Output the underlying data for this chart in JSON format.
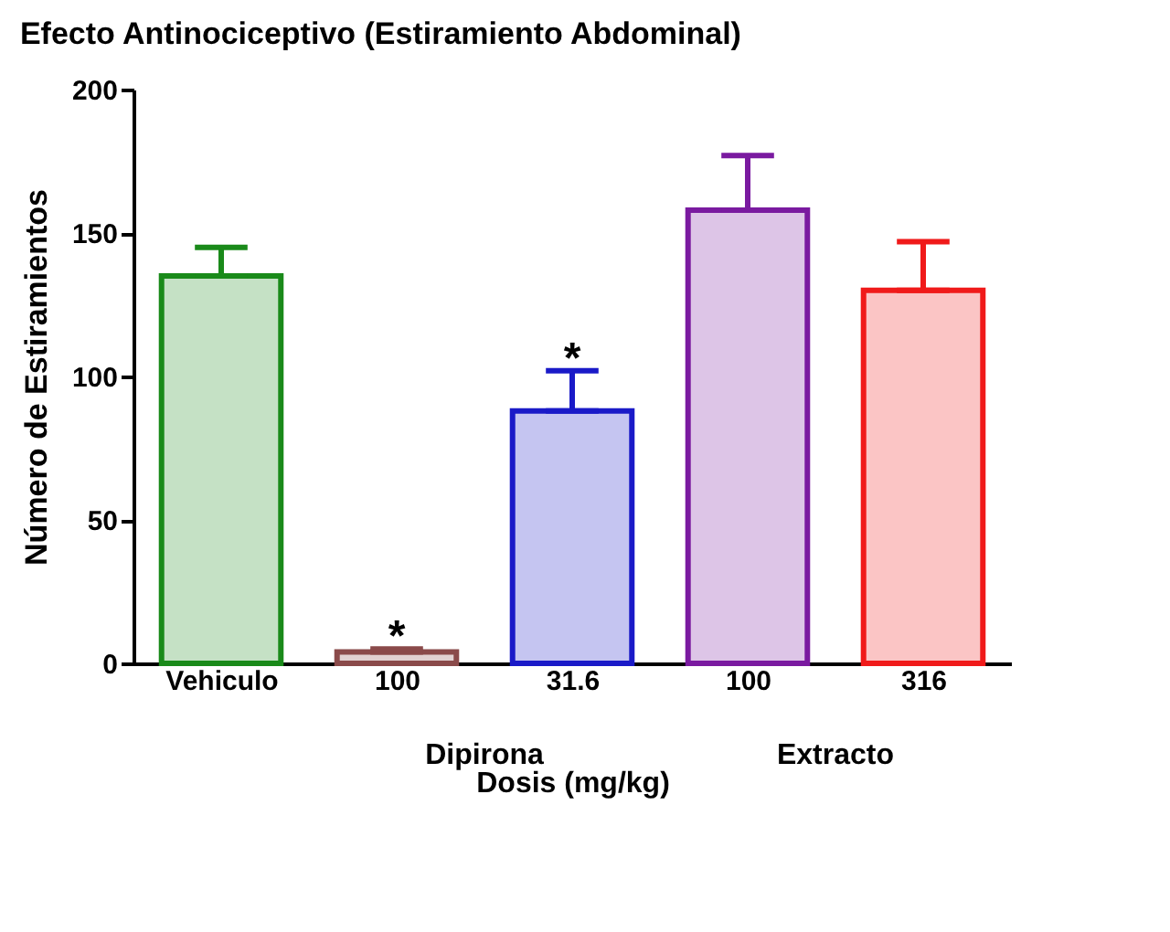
{
  "chart_data": {
    "type": "bar",
    "title": "Efecto Antinociceptivo (Estiramiento Abdominal)",
    "xlabel": "Dosis (mg/kg)",
    "ylabel": "Número de Estiramientos",
    "categories": [
      "Vehiculo",
      "100",
      "31.6",
      "100",
      "316"
    ],
    "values": [
      135,
      4,
      88,
      158,
      130
    ],
    "errors": [
      [
        135,
        145
      ],
      [
        4,
        5
      ],
      [
        88,
        102
      ],
      [
        158,
        177
      ],
      [
        130,
        147
      ]
    ],
    "colors": [
      "#1a8a1a",
      "#8a4a4a",
      "#1a1ac8",
      "#7a1aa0",
      "#f01a1a"
    ],
    "ylim": [
      0,
      200
    ],
    "yticks": [
      0,
      50,
      100,
      150,
      200
    ],
    "grid": false,
    "annotations": [
      {
        "text": "*",
        "x": "100",
        "y": 5
      },
      {
        "text": "*",
        "x": "31.6",
        "y": 102
      },
      "Dipirona",
      "Extracto"
    ]
  }
}
